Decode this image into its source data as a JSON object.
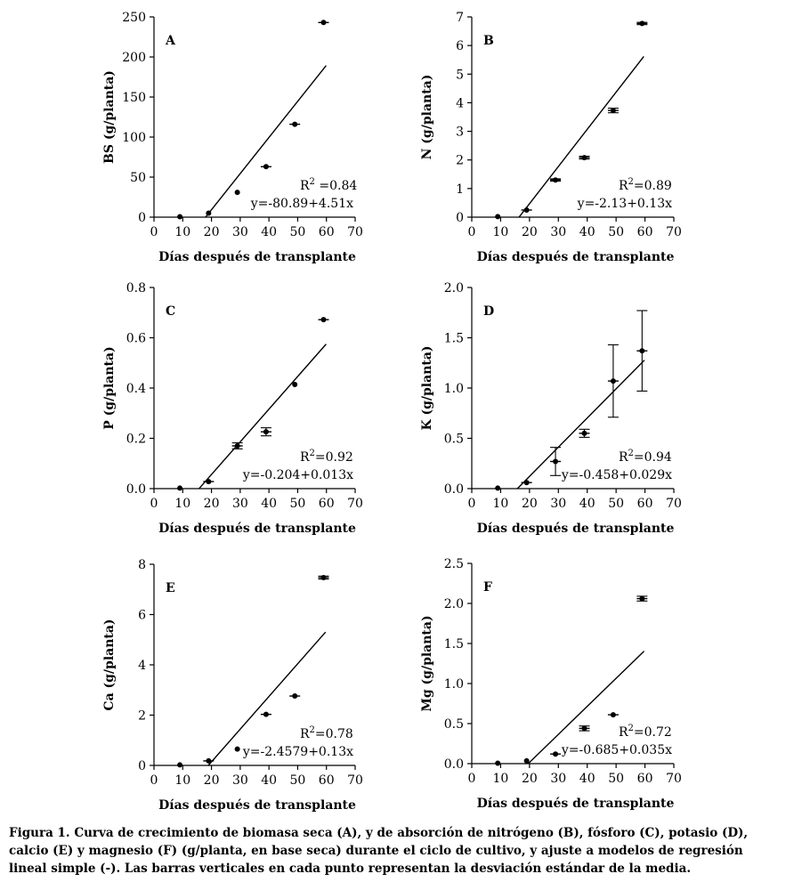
{
  "caption": "Figura 1. Curva de crecimiento de biomasa seca (A), y de absorción de nitrógeno (B), fósforo (C), potasio (D), calcio (E) y magnesio (F) (g/planta, en base seca) durante el ciclo de cultivo, y ajuste a modelos de regresión lineal simple (-). Las barras verticales en cada punto representan la desviación estándar de la media.",
  "chart_data": [
    {
      "type": "scatter",
      "panel": "A",
      "xlabel": "Días después de transplante",
      "ylabel": "BS (g/planta)",
      "xlim": [
        0,
        70
      ],
      "ylim": [
        0,
        250
      ],
      "xticks": [
        0,
        10,
        20,
        30,
        40,
        50,
        60,
        70
      ],
      "yticks": [
        0,
        50,
        100,
        150,
        200,
        250
      ],
      "ytick_labels": [
        "0",
        "50",
        "100",
        "150",
        "200",
        "250"
      ],
      "x": [
        9,
        19,
        29,
        39,
        49,
        59
      ],
      "y": [
        0.5,
        5,
        31,
        63,
        116,
        243
      ],
      "sd": [
        0,
        0,
        0,
        0,
        0,
        0
      ],
      "hbar": [
        false,
        false,
        false,
        true,
        true,
        true
      ],
      "fit": {
        "intercept": -80.89,
        "slope": 4.51,
        "x_start": 17.9,
        "x_end": 59.9
      },
      "r2_label": "R",
      "r2_sup": "2",
      "r2_value": " =0.84",
      "equation": "y=-80.89+4.51x"
    },
    {
      "type": "scatter",
      "panel": "B",
      "xlabel": "Días después de transplante",
      "ylabel": "N (g/planta)",
      "xlim": [
        0,
        70
      ],
      "ylim": [
        0,
        7
      ],
      "xticks": [
        0,
        10,
        20,
        30,
        40,
        50,
        60,
        70
      ],
      "yticks": [
        0,
        1,
        2,
        3,
        4,
        5,
        6,
        7
      ],
      "ytick_labels": [
        "0",
        "1",
        "2",
        "3",
        "4",
        "5",
        "6",
        "7"
      ],
      "x": [
        9,
        19,
        29,
        39,
        49,
        59
      ],
      "y": [
        0.02,
        0.25,
        1.3,
        2.08,
        3.73,
        6.77
      ],
      "sd": [
        0,
        0,
        0.04,
        0.05,
        0.08,
        0.04
      ],
      "hbar": [
        false,
        true,
        true,
        true,
        true,
        true
      ],
      "fit": {
        "intercept": -2.13,
        "slope": 0.13,
        "x_start": 16.4,
        "x_end": 59.6
      },
      "r2_label": "R",
      "r2_sup": "2",
      "r2_value": "=0.89",
      "equation": "y=-2.13+0.13x"
    },
    {
      "type": "scatter",
      "panel": "C",
      "xlabel": "Días después de transplante",
      "ylabel": "P (g/planta)",
      "xlim": [
        0,
        70
      ],
      "ylim": [
        0,
        0.8
      ],
      "xticks": [
        0,
        10,
        20,
        30,
        40,
        50,
        60,
        70
      ],
      "yticks": [
        0,
        0.2,
        0.4,
        0.6,
        0.8
      ],
      "ytick_labels": [
        "0.0",
        "0.2",
        "0.4",
        "0.6",
        "0.8"
      ],
      "x": [
        9,
        19,
        29,
        39,
        49,
        59
      ],
      "y": [
        0.002,
        0.028,
        0.17,
        0.226,
        0.414,
        0.672
      ],
      "sd": [
        0,
        0,
        0.012,
        0.016,
        0,
        0
      ],
      "hbar": [
        false,
        true,
        true,
        true,
        false,
        true
      ],
      "fit": {
        "intercept": -0.204,
        "slope": 0.013,
        "x_start": 15.7,
        "x_end": 59.9
      },
      "r2_label": "R",
      "r2_sup": "2",
      "r2_value": "=0.92",
      "equation": "y=-0.204+0.013x"
    },
    {
      "type": "scatter",
      "panel": "D",
      "xlabel": "Días después de transplante",
      "ylabel": "K (g/planta)",
      "xlim": [
        0,
        70
      ],
      "ylim": [
        0,
        2.0
      ],
      "xticks": [
        0,
        10,
        20,
        30,
        40,
        50,
        60,
        70
      ],
      "yticks": [
        0,
        0.5,
        1.0,
        1.5,
        2.0
      ],
      "ytick_labels": [
        "0.0",
        "0.5",
        "1.0",
        "1.5",
        "2.0"
      ],
      "x": [
        9,
        19,
        29,
        39,
        49,
        59
      ],
      "y": [
        0.005,
        0.06,
        0.27,
        0.55,
        1.07,
        1.37
      ],
      "sd": [
        0,
        0,
        0.14,
        0.04,
        0.36,
        0.4
      ],
      "hbar": [
        false,
        true,
        true,
        true,
        true,
        true
      ],
      "fit": {
        "intercept": -0.458,
        "slope": 0.029,
        "x_start": 15.8,
        "x_end": 59.8
      },
      "r2_label": "R",
      "r2_sup": "2",
      "r2_value": "=0.94",
      "equation": "y=-0.458+0.029x"
    },
    {
      "type": "scatter",
      "panel": "E",
      "xlabel": "Días después de transplante",
      "ylabel": "Ca (g/planta)",
      "xlim": [
        0,
        70
      ],
      "ylim": [
        0,
        8
      ],
      "xticks": [
        0,
        10,
        20,
        30,
        40,
        50,
        60,
        70
      ],
      "yticks": [
        0,
        2,
        4,
        6,
        8
      ],
      "ytick_labels": [
        "0",
        "2",
        "4",
        "6",
        "8"
      ],
      "x": [
        9,
        19,
        29,
        39,
        49,
        59
      ],
      "y": [
        0.02,
        0.18,
        0.65,
        2.03,
        2.76,
        7.47
      ],
      "sd": [
        0,
        0,
        0,
        0,
        0,
        0.06
      ],
      "hbar": [
        false,
        true,
        false,
        true,
        true,
        true
      ],
      "fit": {
        "intercept": -2.4579,
        "slope": 0.13,
        "x_start": 18.8,
        "x_end": 59.7
      },
      "r2_label": "R",
      "r2_sup": "2",
      "r2_value": "=0.78",
      "equation": "y=-2.4579+0.13x"
    },
    {
      "type": "scatter",
      "panel": "F",
      "xlabel": "Días después de transplante",
      "ylabel": "Mg (g/planta)",
      "xlim": [
        0,
        70
      ],
      "ylim": [
        0,
        2.5
      ],
      "xticks": [
        0,
        10,
        20,
        30,
        40,
        50,
        60,
        70
      ],
      "yticks": [
        0,
        0.5,
        1.0,
        1.5,
        2.0,
        2.5
      ],
      "ytick_labels": [
        "0.0",
        "0.5",
        "1.0",
        "1.5",
        "2.0",
        "2.5"
      ],
      "x": [
        9,
        19,
        29,
        39,
        49,
        59
      ],
      "y": [
        0.005,
        0.035,
        0.12,
        0.44,
        0.61,
        2.06
      ],
      "sd": [
        0,
        0,
        0,
        0.03,
        0,
        0.03
      ],
      "hbar": [
        false,
        false,
        true,
        true,
        true,
        true
      ],
      "fit": {
        "intercept": -0.685,
        "slope": 0.035,
        "x_start": 19.6,
        "x_end": 59.7
      },
      "r2_label": "R",
      "r2_sup": "2",
      "r2_value": "=0.72",
      "equation": "y=-0.685+0.035x"
    }
  ]
}
